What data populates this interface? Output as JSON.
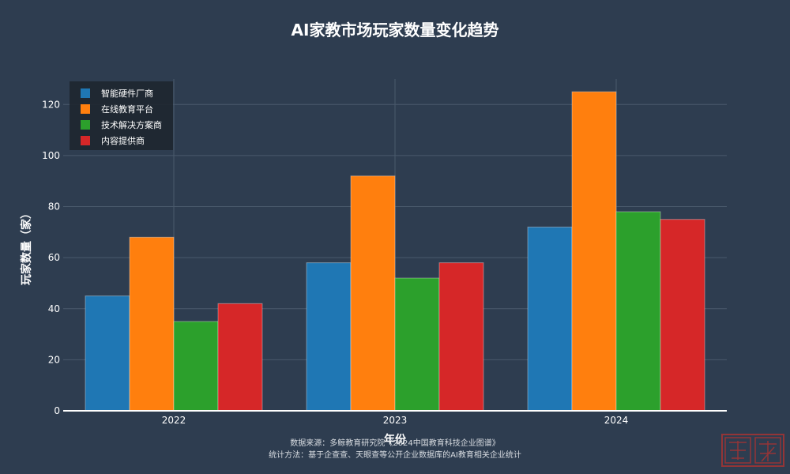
{
  "chart_data": {
    "type": "bar",
    "title": "AI家教市场玩家数量变化趋势",
    "xlabel": "年份",
    "ylabel": "玩家数量（家）",
    "categories": [
      "2022",
      "2023",
      "2024"
    ],
    "ylim": [
      0,
      130
    ],
    "yticks": [
      0,
      20,
      40,
      60,
      80,
      100,
      120
    ],
    "grid": true,
    "legend_position": "top-left",
    "series": [
      {
        "name": "智能硬件厂商",
        "color": "#1f77b4",
        "values": [
          45,
          58,
          72
        ]
      },
      {
        "name": "在线教育平台",
        "color": "#ff7f0e",
        "values": [
          68,
          92,
          125
        ]
      },
      {
        "name": "技术解决方案商",
        "color": "#2ca02c",
        "values": [
          35,
          52,
          78
        ]
      },
      {
        "name": "内容提供商",
        "color": "#d62728",
        "values": [
          42,
          58,
          75
        ]
      }
    ]
  },
  "footer": {
    "source": "数据来源：多鲸教育研究院《2024中国教育科技企业图谱》",
    "method": "统计方法：基于企查查、天眼查等公开企业数据库的AI教育相关企业统计"
  },
  "colors": {
    "background": "#2e3d50",
    "grid": "#4a5a6c",
    "text": "#ffffff",
    "legend_bg": "#1e2630",
    "stamp": "#b5332f"
  }
}
